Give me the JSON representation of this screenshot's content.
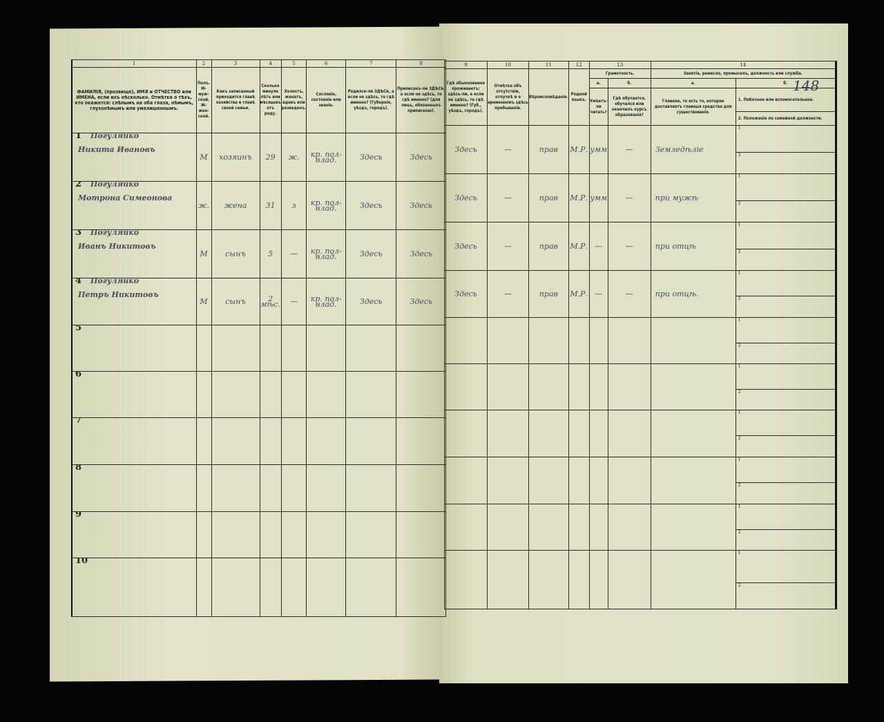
{
  "page_number": "148",
  "left": {
    "col_numbers": [
      "1",
      "2",
      "3",
      "4",
      "5",
      "6",
      "7",
      "8"
    ],
    "headers": [
      "ФАМИЛІЯ, (прозвище), ИМЯ и ОТЧЕСТВО или ИМЕНА, если ихъ нѣсколько. Отмѣтка о тѣхъ, кто окажется: слѣпымъ на оба глаза, нѣмымъ, глухонѣмымъ или умалишеннымъ.",
      "Полъ. М-муж-ской. Ж-жен-ской.",
      "Какъ записанный приходится главѣ хозяйства и главѣ своей семьи.",
      "Сколько минуло лѣтъ или мѣсяцевъ отъ роду.",
      "Холостъ, женатъ, вдовъ или разведенъ.",
      "Сословіе, состояніе или званіе.",
      "Родился-ли ЗДѢСЬ, а если не здѣсь, то гдѣ именно? (Губернія, уѣздъ, городъ).",
      "Приписанъ-ли ЗДѢСЬ, а если не здѣсь, то гдѣ именно? (для лицъ, обязанныхъ припискою)."
    ]
  },
  "right": {
    "col_numbers": [
      "9",
      "10",
      "11",
      "12",
      "13",
      "14"
    ],
    "headers": {
      "c9": "Гдѣ обыкновенно проживаетъ: здѣсь-ли, а если не здѣсь, то гдѣ именно? (Губ., уѣздъ, городъ).",
      "c10": "Отмѣтка объ отсутствіи, отлучкѣ и о временномъ здѣсь пребываніи.",
      "c11": "Вѣроисповѣданіе.",
      "c12": "Родной языкъ.",
      "c13": "Грамотность.",
      "c14": "Занятіе, ремесло, промыселъ, должность или служба.",
      "c13a": "а.",
      "c13b": "б.",
      "c14a": "а.",
      "c14b": "б.",
      "c13a_text": "Умѣетъ-ли читать?",
      "c13b_text": "Гдѣ обучается, обучался или окончилъ курсъ образованія?",
      "c14a_text": "Главное, то есть то, которое доставляетъ главныя средства для существованія.",
      "c14b_1": "1. Побочное или вспомогательное.",
      "c14b_2": "2. Положеніе по семейной должности."
    }
  },
  "rows": [
    {
      "n": "1",
      "surname": "Погуляйко",
      "name": "Никита Ивановъ",
      "sex": "М",
      "relation": "хозяинъ",
      "age": "29",
      "marital": "ж.",
      "estate": "кр. пол-влад.",
      "born": "Здесь",
      "registered": "Здесь",
      "resides": "Здесь",
      "absence": "—",
      "religion": "прав",
      "language": "М.Р.",
      "literate": "умм",
      "education": "—",
      "occupation": "Земледѣліе"
    },
    {
      "n": "2",
      "surname": "Погуляйко",
      "name": "Мотрона Симеонова",
      "sex": "ж.",
      "relation": "жена",
      "age": "31",
      "marital": "з",
      "estate": "кр. пол-влад.",
      "born": "Здесь",
      "registered": "Здесь",
      "resides": "Здесь",
      "absence": "—",
      "religion": "прав",
      "language": "М.Р.",
      "literate": "умм",
      "education": "—",
      "occupation": "при мужѣ"
    },
    {
      "n": "3",
      "surname": "Погуляйко",
      "name": "Иванъ Никитовъ",
      "sex": "М",
      "relation": "сынъ",
      "age": "5",
      "marital": "—",
      "estate": "кр. пол-влад.",
      "born": "Здесь",
      "registered": "Здесь",
      "resides": "Здесь",
      "absence": "—",
      "religion": "прав",
      "language": "М.Р.",
      "literate": "—",
      "education": "—",
      "occupation": "при отцѣ"
    },
    {
      "n": "4",
      "surname": "Погуляйко",
      "name": "Петръ Никитовъ",
      "sex": "М",
      "relation": "сынъ",
      "age": "2 мѣс.",
      "marital": "—",
      "estate": "кр. пол-влад.",
      "born": "Здесь",
      "registered": "Здесь",
      "resides": "Здесь",
      "absence": "—",
      "religion": "прав",
      "language": "М.Р.",
      "literate": "—",
      "education": "—",
      "occupation": "при отцѣ."
    },
    {
      "n": "5"
    },
    {
      "n": "6"
    },
    {
      "n": "7"
    },
    {
      "n": "8"
    },
    {
      "n": "9"
    },
    {
      "n": "10"
    }
  ],
  "sub_labels": [
    "1",
    "2"
  ]
}
